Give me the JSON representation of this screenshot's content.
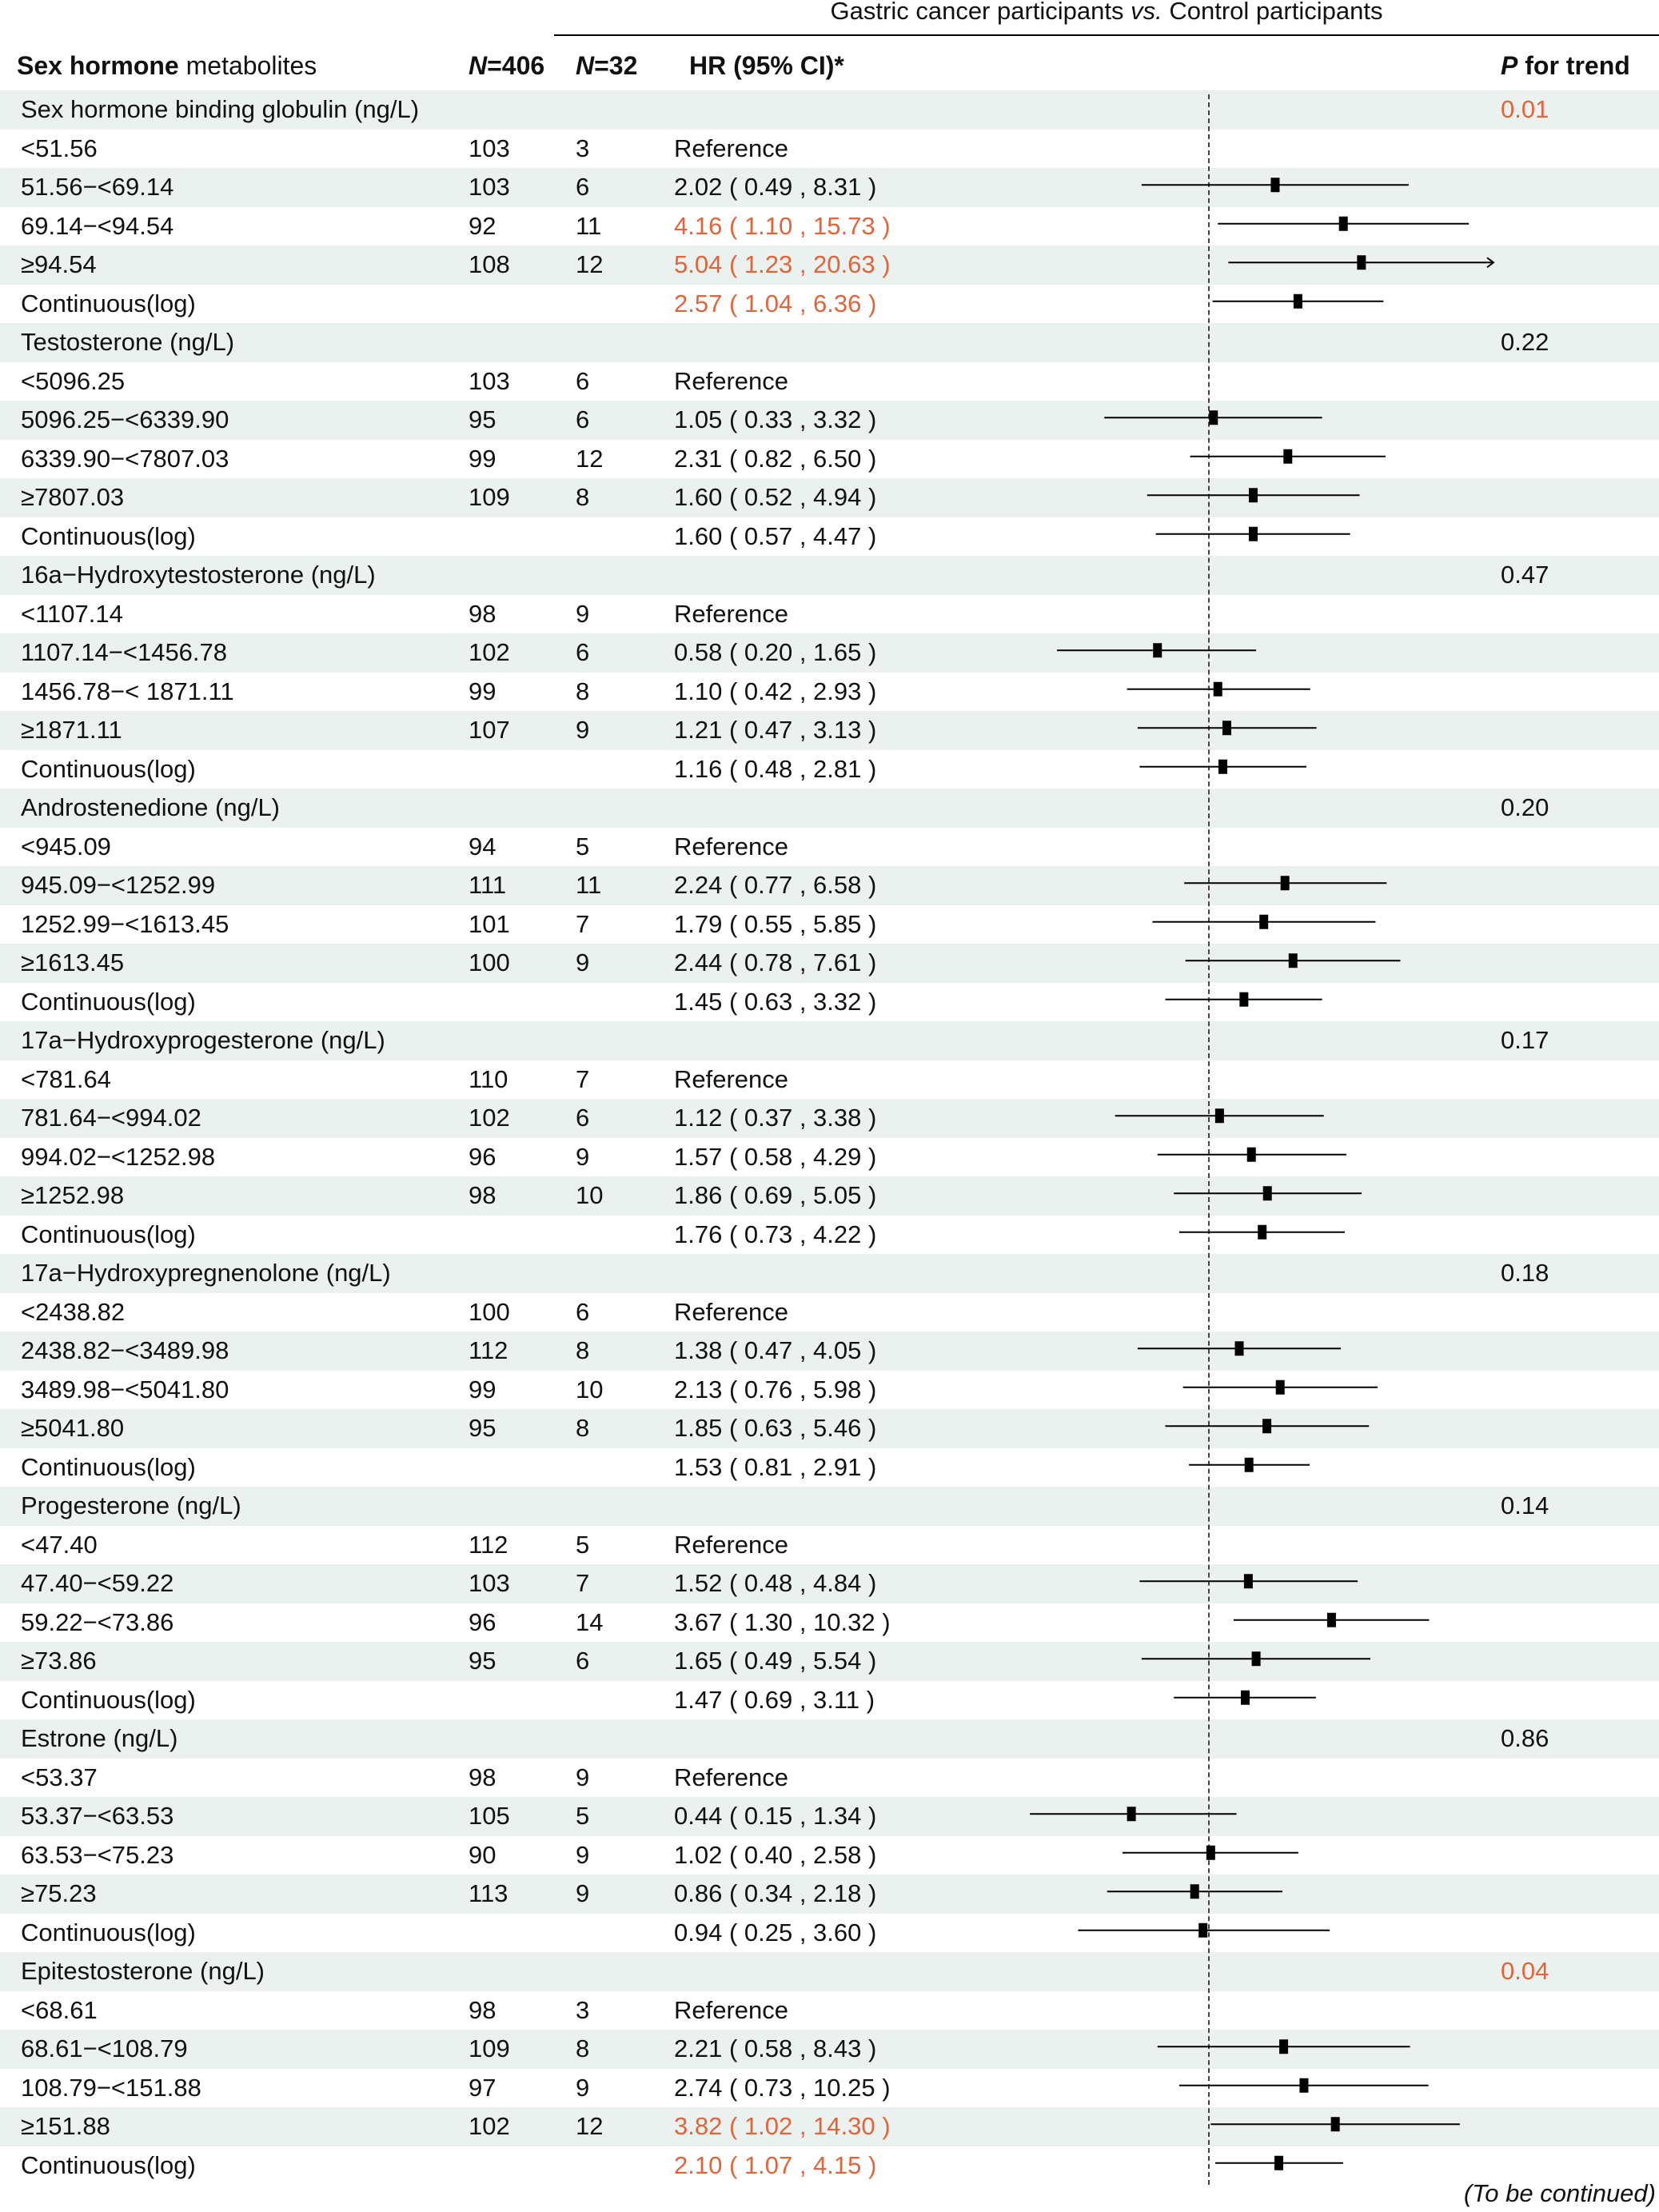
{
  "header": {
    "group_title_a": "Gastric cancer participants ",
    "group_title_vs": "vs.",
    "group_title_b": " Control participants",
    "col_label_bold": "Sex hormone",
    "col_label_rest": " metabolites",
    "col_n_total_italic": "N",
    "col_n_total_rest": "=406",
    "col_n_cases_italic": "N",
    "col_n_cases_rest": "=32",
    "col_hr": "HR (95% CI)*",
    "col_p_italic": "P",
    "col_p_rest": " for trend"
  },
  "footer": "(To be continued)",
  "colors": {
    "significant": "#e0653a",
    "band": "#ebf1ef",
    "text": "#111111"
  },
  "chart_data": {
    "type": "forest",
    "title": "Gastric cancer participants vs. Control participants",
    "xscale": "log",
    "reference_line": 1,
    "columns": [
      "Sex hormone metabolites",
      "N=406",
      "N=32",
      "HR (95% CI)*",
      "P for trend"
    ],
    "sections": [
      {
        "name": "Sex hormone binding globulin (ng/L)",
        "p_trend": "0.01",
        "p_sig": true,
        "rows": [
          {
            "label": "<51.56",
            "n1": "103",
            "n2": "3",
            "hr": null,
            "text": "Reference",
            "sig": false
          },
          {
            "label": "51.56−<69.14",
            "n1": "103",
            "n2": "6",
            "hr": 2.02,
            "lo": 0.49,
            "hi": 8.31,
            "text": "2.02 ( 0.49 , 8.31 )",
            "sig": false
          },
          {
            "label": "69.14−<94.54",
            "n1": "92",
            "n2": "11",
            "hr": 4.16,
            "lo": 1.1,
            "hi": 15.73,
            "text": "4.16 ( 1.10 , 15.73 )",
            "sig": true
          },
          {
            "label": "≥94.54",
            "n1": "108",
            "n2": "12",
            "hr": 5.04,
            "lo": 1.23,
            "hi": 20.63,
            "text": "5.04 ( 1.23 , 20.63 )",
            "sig": true,
            "arrow": true
          },
          {
            "label": "Continuous(log)",
            "n1": "",
            "n2": "",
            "hr": 2.57,
            "lo": 1.04,
            "hi": 6.36,
            "text": "2.57 ( 1.04 , 6.36 )",
            "sig": true
          }
        ]
      },
      {
        "name": "Testosterone (ng/L)",
        "p_trend": "0.22",
        "p_sig": false,
        "rows": [
          {
            "label": "<5096.25",
            "n1": "103",
            "n2": "6",
            "hr": null,
            "text": "Reference",
            "sig": false
          },
          {
            "label": "5096.25−<6339.90",
            "n1": "95",
            "n2": "6",
            "hr": 1.05,
            "lo": 0.33,
            "hi": 3.32,
            "text": "1.05 ( 0.33 , 3.32 )",
            "sig": false
          },
          {
            "label": "6339.90−<7807.03",
            "n1": "99",
            "n2": "12",
            "hr": 2.31,
            "lo": 0.82,
            "hi": 6.5,
            "text": "2.31 ( 0.82 , 6.50 )",
            "sig": false
          },
          {
            "label": "≥7807.03",
            "n1": "109",
            "n2": "8",
            "hr": 1.6,
            "lo": 0.52,
            "hi": 4.94,
            "text": "1.60 ( 0.52 , 4.94 )",
            "sig": false
          },
          {
            "label": "Continuous(log)",
            "n1": "",
            "n2": "",
            "hr": 1.6,
            "lo": 0.57,
            "hi": 4.47,
            "text": "1.60 ( 0.57 , 4.47 )",
            "sig": false
          }
        ]
      },
      {
        "name": "16a−Hydroxytestosterone (ng/L)",
        "p_trend": "0.47",
        "p_sig": false,
        "rows": [
          {
            "label": "<1107.14",
            "n1": "98",
            "n2": "9",
            "hr": null,
            "text": "Reference",
            "sig": false
          },
          {
            "label": "1107.14−<1456.78",
            "n1": "102",
            "n2": "6",
            "hr": 0.58,
            "lo": 0.2,
            "hi": 1.65,
            "text": "0.58 ( 0.20 , 1.65 )",
            "sig": false
          },
          {
            "label": "1456.78−< 1871.11",
            "n1": "99",
            "n2": "8",
            "hr": 1.1,
            "lo": 0.42,
            "hi": 2.93,
            "text": "1.10 ( 0.42 , 2.93 )",
            "sig": false
          },
          {
            "label": "≥1871.11",
            "n1": "107",
            "n2": "9",
            "hr": 1.21,
            "lo": 0.47,
            "hi": 3.13,
            "text": "1.21 ( 0.47 , 3.13 )",
            "sig": false
          },
          {
            "label": "Continuous(log)",
            "n1": "",
            "n2": "",
            "hr": 1.16,
            "lo": 0.48,
            "hi": 2.81,
            "text": "1.16 ( 0.48 , 2.81 )",
            "sig": false
          }
        ]
      },
      {
        "name": "Androstenedione (ng/L)",
        "p_trend": "0.20",
        "p_sig": false,
        "rows": [
          {
            "label": "<945.09",
            "n1": "94",
            "n2": "5",
            "hr": null,
            "text": "Reference",
            "sig": false
          },
          {
            "label": "945.09−<1252.99",
            "n1": "111",
            "n2": "11",
            "hr": 2.24,
            "lo": 0.77,
            "hi": 6.58,
            "text": "2.24 ( 0.77 , 6.58 )",
            "sig": false
          },
          {
            "label": "1252.99−<1613.45",
            "n1": "101",
            "n2": "7",
            "hr": 1.79,
            "lo": 0.55,
            "hi": 5.85,
            "text": "1.79 ( 0.55 , 5.85 )",
            "sig": false
          },
          {
            "label": "≥1613.45",
            "n1": "100",
            "n2": "9",
            "hr": 2.44,
            "lo": 0.78,
            "hi": 7.61,
            "text": "2.44 ( 0.78 , 7.61 )",
            "sig": false
          },
          {
            "label": "Continuous(log)",
            "n1": "",
            "n2": "",
            "hr": 1.45,
            "lo": 0.63,
            "hi": 3.32,
            "text": "1.45 ( 0.63 , 3.32 )",
            "sig": false
          }
        ]
      },
      {
        "name": "17a−Hydroxyprogesterone (ng/L)",
        "p_trend": "0.17",
        "p_sig": false,
        "rows": [
          {
            "label": "<781.64",
            "n1": "110",
            "n2": "7",
            "hr": null,
            "text": "Reference",
            "sig": false
          },
          {
            "label": "781.64−<994.02",
            "n1": "102",
            "n2": "6",
            "hr": 1.12,
            "lo": 0.37,
            "hi": 3.38,
            "text": "1.12 ( 0.37 , 3.38 )",
            "sig": false
          },
          {
            "label": "994.02−<1252.98",
            "n1": "96",
            "n2": "9",
            "hr": 1.57,
            "lo": 0.58,
            "hi": 4.29,
            "text": "1.57 ( 0.58 , 4.29 )",
            "sig": false
          },
          {
            "label": "≥1252.98",
            "n1": "98",
            "n2": "10",
            "hr": 1.86,
            "lo": 0.69,
            "hi": 5.05,
            "text": "1.86 ( 0.69 , 5.05 )",
            "sig": false
          },
          {
            "label": "Continuous(log)",
            "n1": "",
            "n2": "",
            "hr": 1.76,
            "lo": 0.73,
            "hi": 4.22,
            "text": "1.76 ( 0.73 , 4.22 )",
            "sig": false
          }
        ]
      },
      {
        "name": "17a−Hydroxypregnenolone (ng/L)",
        "p_trend": "0.18",
        "p_sig": false,
        "rows": [
          {
            "label": "<2438.82",
            "n1": "100",
            "n2": "6",
            "hr": null,
            "text": "Reference",
            "sig": false
          },
          {
            "label": "2438.82−<3489.98",
            "n1": "112",
            "n2": "8",
            "hr": 1.38,
            "lo": 0.47,
            "hi": 4.05,
            "text": "1.38 ( 0.47 , 4.05 )",
            "sig": false
          },
          {
            "label": "3489.98−<5041.80",
            "n1": "99",
            "n2": "10",
            "hr": 2.13,
            "lo": 0.76,
            "hi": 5.98,
            "text": "2.13 ( 0.76 , 5.98 )",
            "sig": false
          },
          {
            "label": "≥5041.80",
            "n1": "95",
            "n2": "8",
            "hr": 1.85,
            "lo": 0.63,
            "hi": 5.46,
            "text": "1.85 ( 0.63 , 5.46 )",
            "sig": false
          },
          {
            "label": "Continuous(log)",
            "n1": "",
            "n2": "",
            "hr": 1.53,
            "lo": 0.81,
            "hi": 2.91,
            "text": "1.53 ( 0.81 , 2.91 )",
            "sig": false
          }
        ]
      },
      {
        "name": "Progesterone (ng/L)",
        "p_trend": "0.14",
        "p_sig": false,
        "rows": [
          {
            "label": "<47.40",
            "n1": "112",
            "n2": "5",
            "hr": null,
            "text": "Reference",
            "sig": false
          },
          {
            "label": "47.40−<59.22",
            "n1": "103",
            "n2": "7",
            "hr": 1.52,
            "lo": 0.48,
            "hi": 4.84,
            "text": "1.52 ( 0.48 , 4.84 )",
            "sig": false
          },
          {
            "label": "59.22−<73.86",
            "n1": "96",
            "n2": "14",
            "hr": 3.67,
            "lo": 1.3,
            "hi": 10.32,
            "text": "3.67 ( 1.30 , 10.32 )",
            "sig": false
          },
          {
            "label": "≥73.86",
            "n1": "95",
            "n2": "6",
            "hr": 1.65,
            "lo": 0.49,
            "hi": 5.54,
            "text": "1.65 ( 0.49 , 5.54 )",
            "sig": false
          },
          {
            "label": "Continuous(log)",
            "n1": "",
            "n2": "",
            "hr": 1.47,
            "lo": 0.69,
            "hi": 3.11,
            "text": "1.47 ( 0.69 , 3.11 )",
            "sig": false
          }
        ]
      },
      {
        "name": "Estrone (ng/L)",
        "p_trend": "0.86",
        "p_sig": false,
        "rows": [
          {
            "label": "<53.37",
            "n1": "98",
            "n2": "9",
            "hr": null,
            "text": "Reference",
            "sig": false
          },
          {
            "label": "53.37−<63.53",
            "n1": "105",
            "n2": "5",
            "hr": 0.44,
            "lo": 0.15,
            "hi": 1.34,
            "text": "0.44 ( 0.15 , 1.34 )",
            "sig": false
          },
          {
            "label": "63.53−<75.23",
            "n1": "90",
            "n2": "9",
            "hr": 1.02,
            "lo": 0.4,
            "hi": 2.58,
            "text": "1.02 ( 0.40 , 2.58 )",
            "sig": false
          },
          {
            "label": "≥75.23",
            "n1": "113",
            "n2": "9",
            "hr": 0.86,
            "lo": 0.34,
            "hi": 2.18,
            "text": "0.86 ( 0.34 , 2.18 )",
            "sig": false
          },
          {
            "label": "Continuous(log)",
            "n1": "",
            "n2": "",
            "hr": 0.94,
            "lo": 0.25,
            "hi": 3.6,
            "text": "0.94 ( 0.25 , 3.60 )",
            "sig": false
          }
        ]
      },
      {
        "name": "Epitestosterone (ng/L)",
        "p_trend": "0.04",
        "p_sig": true,
        "rows": [
          {
            "label": "<68.61",
            "n1": "98",
            "n2": "3",
            "hr": null,
            "text": "Reference",
            "sig": false
          },
          {
            "label": "68.61−<108.79",
            "n1": "109",
            "n2": "8",
            "hr": 2.21,
            "lo": 0.58,
            "hi": 8.43,
            "text": "2.21 ( 0.58 , 8.43 )",
            "sig": false
          },
          {
            "label": "108.79−<151.88",
            "n1": "97",
            "n2": "9",
            "hr": 2.74,
            "lo": 0.73,
            "hi": 10.25,
            "text": "2.74 ( 0.73 , 10.25 )",
            "sig": false
          },
          {
            "label": "≥151.88",
            "n1": "102",
            "n2": "12",
            "hr": 3.82,
            "lo": 1.02,
            "hi": 14.3,
            "text": "3.82 ( 1.02 , 14.30 )",
            "sig": true
          },
          {
            "label": "Continuous(log)",
            "n1": "",
            "n2": "",
            "hr": 2.1,
            "lo": 1.07,
            "hi": 4.15,
            "text": "2.10 ( 1.07 , 4.15 )",
            "sig": true
          }
        ]
      }
    ]
  }
}
